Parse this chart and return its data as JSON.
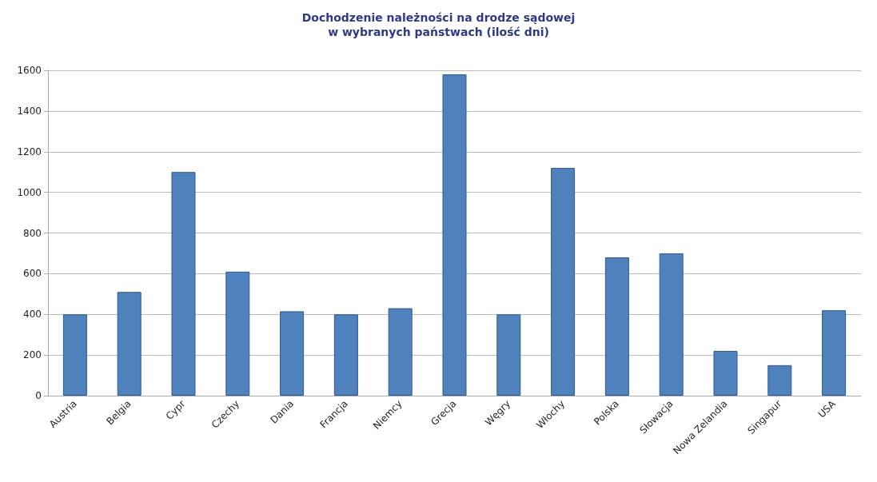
{
  "chart_data": {
    "type": "bar",
    "title": "Dochodzenie należności na drodze sądowej\nw wybranych państwach (ilość dni)",
    "categories": [
      "Austria",
      "Belgia",
      "Cypr",
      "Czechy",
      "Dania",
      "Francja",
      "Niemcy",
      "Grecja",
      "Węgry",
      "Włochy",
      "Polska",
      "Słowacja",
      "Nowa Zelandia",
      "Singapur",
      "USA"
    ],
    "values": [
      400,
      510,
      1100,
      610,
      415,
      400,
      430,
      1580,
      400,
      1120,
      680,
      700,
      220,
      150,
      420
    ],
    "color": "#4f81bd",
    "ylim": [
      0,
      1600
    ],
    "yticks": [
      0,
      200,
      400,
      600,
      800,
      1000,
      1200,
      1400,
      1600
    ],
    "grid": "y"
  }
}
